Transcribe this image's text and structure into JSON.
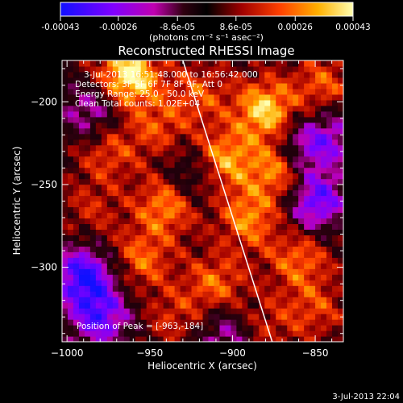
{
  "chart_data": {
    "type": "heatmap",
    "title": "Reconstructed RHESSI Image",
    "xlabel": "Heliocentric X (arcsec)",
    "ylabel": "Heliocentric Y (arcsec)",
    "xlim": [
      -1003,
      -833
    ],
    "ylim": [
      -345,
      -175
    ],
    "xticks": [
      -1000,
      -950,
      -900,
      -850
    ],
    "yticks": [
      -200,
      -250,
      -300
    ],
    "grid": false,
    "colorbar": {
      "position": "top",
      "min": -0.00043,
      "max": 0.00043,
      "ticks": [
        "-0.00043",
        "-0.00026",
        "-8.6e-05",
        "8.6e-05",
        "0.00026",
        "0.00043"
      ],
      "unit_label": "(photons cm⁻² s⁻¹ asec⁻²)",
      "colormap": "rainbow-to-hot"
    },
    "annotations": {
      "time_range": "3-Jul-2013 16:51:48.000 to 16:56:42.000",
      "detectors": "Detectors: 3F 5F 6F 7F 8F 9F, Att 0",
      "energy": "Energy Range: 25.0 - 50.0 keV",
      "clean": "Clean    Total counts: 1.02E+04",
      "peak": "Position of Peak = [-963,-184]"
    },
    "peak": [
      -963,
      -184
    ],
    "limb_line": [
      [
        -930,
        -175
      ],
      [
        -876,
        -345
      ]
    ],
    "hotspots": [
      {
        "x": -963,
        "y": -184,
        "value": 0.00043
      },
      {
        "x": -880,
        "y": -205,
        "value": 0.00036
      },
      {
        "x": -870,
        "y": -240,
        "value": 0.00036
      },
      {
        "x": -905,
        "y": -235,
        "value": 0.0003
      },
      {
        "x": -940,
        "y": -262,
        "value": 0.00028
      },
      {
        "x": -890,
        "y": -270,
        "value": 0.00026
      },
      {
        "x": -955,
        "y": -295,
        "value": 0.00022
      },
      {
        "x": -910,
        "y": -310,
        "value": 0.00022
      },
      {
        "x": -860,
        "y": -295,
        "value": 0.00022
      },
      {
        "x": -975,
        "y": -230,
        "value": 0.00018
      },
      {
        "x": -945,
        "y": -215,
        "value": 0.00017
      },
      {
        "x": -845,
        "y": -190,
        "value": 0.0002
      },
      {
        "x": -920,
        "y": -195,
        "value": 0.00018
      },
      {
        "x": -985,
        "y": -265,
        "value": 0.00012
      },
      {
        "x": -850,
        "y": -325,
        "value": 0.00016
      },
      {
        "x": -935,
        "y": -330,
        "value": 0.00014
      },
      {
        "x": -880,
        "y": -335,
        "value": 0.00013
      }
    ],
    "coldspots": [
      {
        "x": -990,
        "y": -305,
        "value": -0.0004
      },
      {
        "x": -980,
        "y": -330,
        "value": -0.00032
      },
      {
        "x": -850,
        "y": -260,
        "value": -0.00035
      },
      {
        "x": -860,
        "y": -230,
        "value": -0.0003
      },
      {
        "x": -985,
        "y": -205,
        "value": -0.00022
      },
      {
        "x": -925,
        "y": -245,
        "value": -0.00018
      },
      {
        "x": -905,
        "y": -340,
        "value": -0.0002
      },
      {
        "x": -840,
        "y": -220,
        "value": -0.0002
      }
    ]
  },
  "footer": {
    "timestamp": "3-Jul-2013 22:04"
  }
}
